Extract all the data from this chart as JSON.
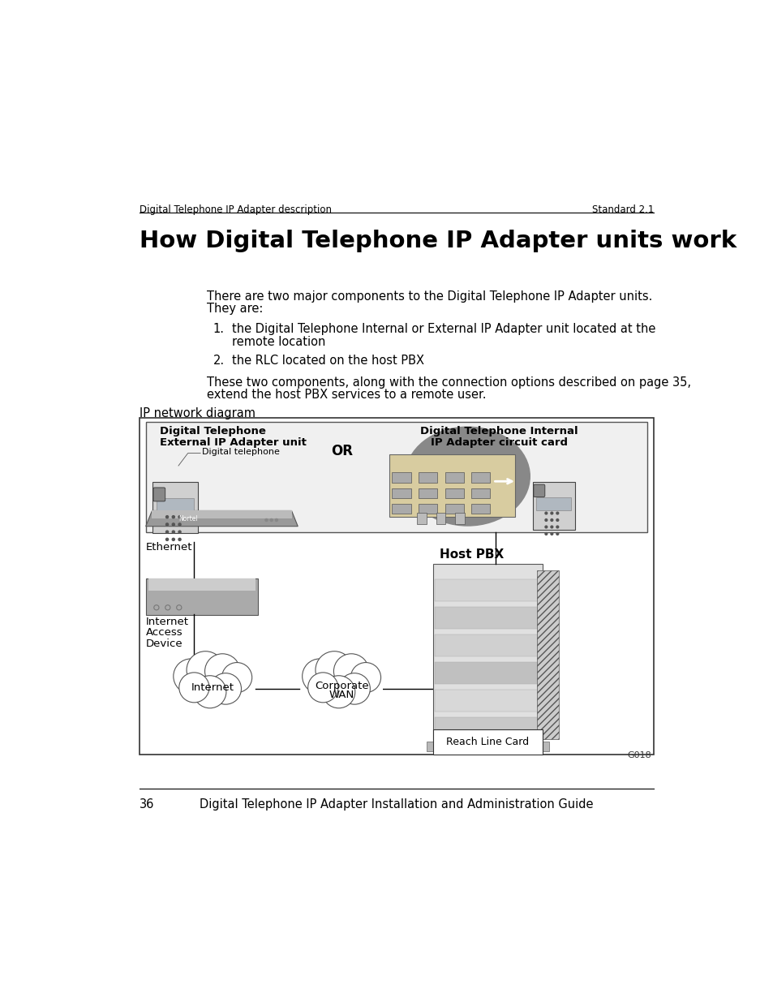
{
  "bg_color": "#ffffff",
  "header_left": "Digital Telephone IP Adapter description",
  "header_right": "Standard 2.1",
  "title": "How Digital Telephone IP Adapter units work",
  "body_line1": "There are two major components to the Digital Telephone IP Adapter units.",
  "body_line2": "They are:",
  "list_item1": "the Digital Telephone Internal or External IP Adapter unit located at the",
  "list_item1b": "remote location",
  "list_item2": "the RLC located on the host PBX",
  "footer_line1": "These two components, along with the connection options described on page 35,",
  "footer_line2": "extend the host PBX services to a remote user.",
  "diagram_label": "IP network diagram",
  "top_left_title1": "Digital Telephone",
  "top_left_title2": "External IP Adapter unit",
  "or_text": "OR",
  "top_right_title1": "Digital Telephone Internal",
  "top_right_title2": "IP Adapter circuit card",
  "label_digital_telephone": "Digital telephone",
  "label_ethernet": "Ethernet",
  "label_iad_line1": "Internet",
  "label_iad_line2": "Access",
  "label_iad_line3": "Device",
  "label_internet": "Internet",
  "label_corporate_wan_line1": "Corporate",
  "label_corporate_wan_line2": "WAN",
  "label_host_pbx": "Host PBX",
  "label_reach_line_card": "Reach Line Card",
  "diagram_ref": "G018",
  "footer_page": "36",
  "footer_title": "Digital Telephone IP Adapter Installation and Administration Guide"
}
